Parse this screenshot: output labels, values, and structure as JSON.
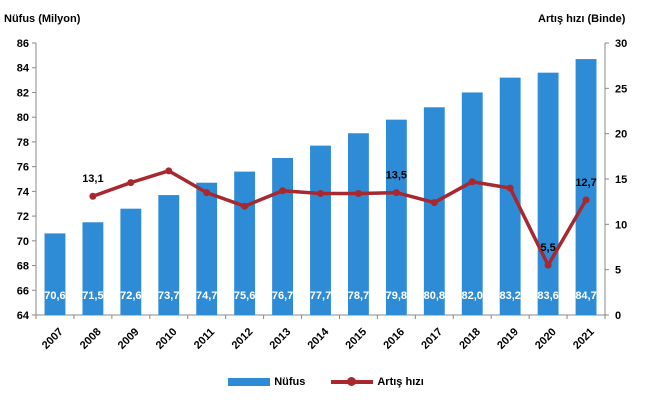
{
  "chart_data": {
    "type": "bar+line",
    "categories": [
      "2007",
      "2008",
      "2009",
      "2010",
      "2011",
      "2012",
      "2013",
      "2014",
      "2015",
      "2016",
      "2017",
      "2018",
      "2019",
      "2020",
      "2021"
    ],
    "series": [
      {
        "name": "Nüfus",
        "type": "bar",
        "axis": "left",
        "values": [
          70.6,
          71.5,
          72.6,
          73.7,
          74.7,
          75.6,
          76.7,
          77.7,
          78.7,
          79.8,
          80.8,
          82.0,
          83.2,
          83.6,
          84.7
        ],
        "labels": [
          "70,6",
          "71,5",
          "72,6",
          "73,7",
          "74,7",
          "75,6",
          "76,7",
          "77,7",
          "78,7",
          "79,8",
          "80,8",
          "82,0",
          "83,2",
          "83,6",
          "84,7"
        ]
      },
      {
        "name": "Artış hızı",
        "type": "line",
        "axis": "right",
        "values": [
          null,
          13.1,
          14.6,
          15.9,
          13.5,
          12.0,
          13.7,
          13.4,
          13.4,
          13.5,
          12.4,
          14.7,
          14.0,
          5.5,
          12.7
        ],
        "point_labels": [
          {
            "index": 1,
            "text": "13,1"
          },
          {
            "index": 9,
            "text": "13,5"
          },
          {
            "index": 13,
            "text": "5,5"
          },
          {
            "index": 14,
            "text": "12,7"
          }
        ]
      }
    ],
    "ylabel": "Nüfus (Milyon)",
    "ylabel_right": "Artış hızı (Binde)",
    "ylim": [
      64,
      86
    ],
    "yticks": [
      64,
      66,
      68,
      70,
      72,
      74,
      76,
      78,
      80,
      82,
      84,
      86
    ],
    "ylim_right": [
      0,
      30
    ],
    "yticks_right": [
      0,
      5,
      10,
      15,
      20,
      25,
      30
    ],
    "grid": false,
    "legend": "bottom",
    "colors": {
      "bar": "#2e8bd6",
      "line": "#a8282f",
      "bar_label": "#ffffff",
      "text": "#000000"
    }
  }
}
